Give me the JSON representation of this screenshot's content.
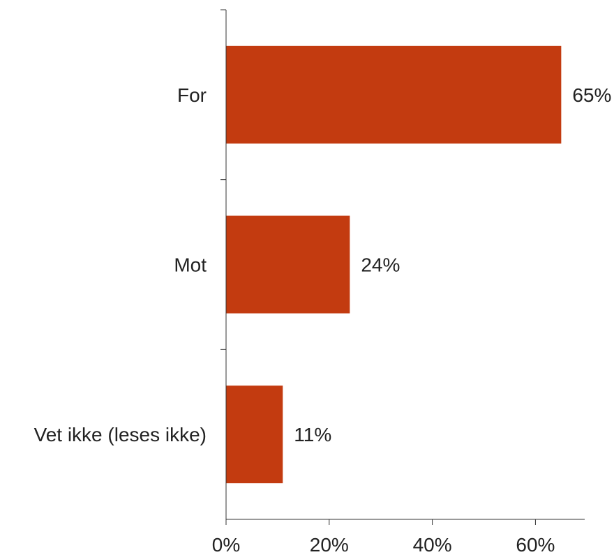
{
  "chart_data": {
    "type": "bar",
    "orientation": "horizontal",
    "categories": [
      "For",
      "Mot",
      "Vet ikke (leses ikke)"
    ],
    "values": [
      65,
      24,
      11
    ],
    "data_labels": [
      "65%",
      "24%",
      "11%"
    ],
    "title": "",
    "xlabel": "",
    "ylabel": "",
    "xlim": [
      0,
      70
    ],
    "xticks": [
      0,
      20,
      40,
      60
    ],
    "xtick_labels": [
      "0%",
      "20%",
      "40%",
      "60%"
    ],
    "grid": false,
    "colors": {
      "bar": "#c33b10",
      "axis": "#333333",
      "text": "#222222"
    }
  }
}
